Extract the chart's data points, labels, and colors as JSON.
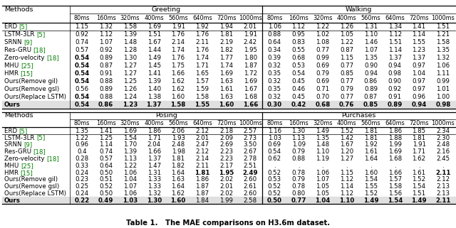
{
  "title": "Table 1.   The MAE comparisons on H3.6m dataset.",
  "col_headers": [
    "80ms",
    "160ms",
    "320ms",
    "400ms",
    "560ms",
    "640ms",
    "720ms",
    "1000ms"
  ],
  "methods": [
    "ERD [5]",
    "LSTM-3LR [5]",
    "SRNN [9]",
    "Res-GRU [18]",
    "Zero-velocity [18]",
    "MHU [25]",
    "HMR [15]",
    "Ours(Remove g_i^l)",
    "Ours(Remove g_s^l)",
    "Ours(Replace LSTM)",
    "Ours"
  ],
  "method_colors": [
    [
      "black",
      "green",
      "black"
    ],
    [
      "black",
      "green",
      "black"
    ],
    [
      "black",
      "green",
      "black"
    ],
    [
      "black",
      "green",
      "black"
    ],
    [
      "black",
      "green",
      "black"
    ],
    [
      "black",
      "green",
      "black"
    ],
    [
      "black",
      "green",
      "black"
    ],
    [
      "black",
      "black",
      "black"
    ],
    [
      "black",
      "black",
      "black"
    ],
    [
      "black",
      "black",
      "black"
    ],
    [
      "black",
      "black",
      "black"
    ]
  ],
  "greeting_data": [
    [
      "1.15",
      "1.32",
      "1.58",
      "1.69",
      "1.91",
      "1.92",
      "1.94",
      "2.01"
    ],
    [
      "0.92",
      "1.12",
      "1.39",
      "1.51",
      "1.76",
      "1.76",
      "1.81",
      "1.91"
    ],
    [
      "0.74",
      "1.07",
      "1.48",
      "1.67",
      "2.14",
      "2.11",
      "2.19",
      "2.42"
    ],
    [
      "0.57",
      "0.92",
      "1.28",
      "1.44",
      "1.74",
      "1.76",
      "1.82",
      "1.95"
    ],
    [
      "0.54",
      "0.89",
      "1.30",
      "1.49",
      "1.76",
      "1.74",
      "1.77",
      "1.80"
    ],
    [
      "0.54",
      "0.87",
      "1.27",
      "1.45",
      "1.75",
      "1.71",
      "1.74",
      "1.87"
    ],
    [
      "0.54",
      "0.91",
      "1.27",
      "1.41",
      "1.66",
      "1.65",
      "1.69",
      "1.72"
    ],
    [
      "0.54",
      "0.88",
      "1.25",
      "1.39",
      "1.62",
      "1.57",
      "1.63",
      "1.69"
    ],
    [
      "0.56",
      "0.89",
      "1.26",
      "1.40",
      "1.62",
      "1.59",
      "1.61",
      "1.67"
    ],
    [
      "0.54",
      "0.88",
      "1.24",
      "1.38",
      "1.60",
      "1.58",
      "1.63",
      "1.68"
    ],
    [
      "0.54",
      "0.86",
      "1.23",
      "1.37",
      "1.58",
      "1.55",
      "1.60",
      "1.66"
    ]
  ],
  "greeting_bold": [
    [
      false,
      false,
      false,
      false,
      false,
      false,
      false,
      false
    ],
    [
      false,
      false,
      false,
      false,
      false,
      false,
      false,
      false
    ],
    [
      false,
      false,
      false,
      false,
      false,
      false,
      false,
      false
    ],
    [
      false,
      false,
      false,
      false,
      false,
      false,
      false,
      false
    ],
    [
      true,
      false,
      false,
      false,
      false,
      false,
      false,
      false
    ],
    [
      true,
      false,
      false,
      false,
      false,
      false,
      false,
      false
    ],
    [
      true,
      false,
      false,
      false,
      false,
      false,
      false,
      false
    ],
    [
      true,
      false,
      false,
      false,
      false,
      false,
      false,
      false
    ],
    [
      false,
      false,
      false,
      false,
      false,
      false,
      false,
      false
    ],
    [
      true,
      false,
      false,
      false,
      false,
      false,
      false,
      false
    ],
    [
      true,
      true,
      true,
      true,
      true,
      true,
      true,
      true
    ]
  ],
  "walking_data": [
    [
      "1.06",
      "1.12",
      "1.22",
      "1.26",
      "1.31",
      "1.34",
      "1.41",
      "1.51"
    ],
    [
      "0.88",
      "0.95",
      "1.02",
      "1.05",
      "1.10",
      "1.12",
      "1.14",
      "1.21"
    ],
    [
      "0.64",
      "0.83",
      "1.08",
      "1.22",
      "1.46",
      "1.51",
      "1.55",
      "1.58"
    ],
    [
      "0.34",
      "0.55",
      "0.77",
      "0.87",
      "1.07",
      "1.14",
      "1.23",
      "1.35"
    ],
    [
      "0.39",
      "0.68",
      "0.99",
      "1.15",
      "1.35",
      "1.37",
      "1.37",
      "1.32"
    ],
    [
      "0.32",
      "0.53",
      "0.69",
      "0.77",
      "0.90",
      "0.94",
      "0.97",
      "1.06"
    ],
    [
      "0.35",
      "0.54",
      "0.79",
      "0.85",
      "0.94",
      "0.98",
      "1.04",
      "1.11"
    ],
    [
      "0.32",
      "0.45",
      "0.69",
      "0.77",
      "0.86",
      "0.90",
      "0.97",
      "0.99"
    ],
    [
      "0.35",
      "0.46",
      "0.71",
      "0.79",
      "0.89",
      "0.92",
      "0.97",
      "1.01"
    ],
    [
      "0.32",
      "0.45",
      "0.70",
      "0.77",
      "0.87",
      "0.91",
      "0.96",
      "1.00"
    ],
    [
      "0.30",
      "0.42",
      "0.68",
      "0.76",
      "0.85",
      "0.89",
      "0.94",
      "0.98"
    ]
  ],
  "walking_bold": [
    [
      false,
      false,
      false,
      false,
      false,
      false,
      false,
      false
    ],
    [
      false,
      false,
      false,
      false,
      false,
      false,
      false,
      false
    ],
    [
      false,
      false,
      false,
      false,
      false,
      false,
      false,
      false
    ],
    [
      false,
      false,
      false,
      false,
      false,
      false,
      false,
      false
    ],
    [
      false,
      false,
      false,
      false,
      false,
      false,
      false,
      false
    ],
    [
      false,
      false,
      false,
      false,
      false,
      false,
      false,
      false
    ],
    [
      false,
      false,
      false,
      false,
      false,
      false,
      false,
      false
    ],
    [
      false,
      false,
      false,
      false,
      false,
      false,
      false,
      false
    ],
    [
      false,
      false,
      false,
      false,
      false,
      false,
      false,
      false
    ],
    [
      false,
      false,
      false,
      false,
      false,
      false,
      false,
      false
    ],
    [
      true,
      true,
      true,
      true,
      true,
      true,
      true,
      true
    ]
  ],
  "posing_data": [
    [
      "1.35",
      "1.41",
      "1.69",
      "1.86",
      "2.06",
      "2.12",
      "2.18",
      "2.57"
    ],
    [
      "1.22",
      "1.25",
      "1.54",
      "1.71",
      "1.93",
      "2.01",
      "2.09",
      "2.73"
    ],
    [
      "0.96",
      "1.14",
      "1.70",
      "2.04",
      "2.48",
      "2.47",
      "2.69",
      "3.50"
    ],
    [
      "0.4",
      "0.74",
      "1.39",
      "1.66",
      "1.98",
      "2.12",
      "2.23",
      "2.67"
    ],
    [
      "0.28",
      "0.57",
      "1.13",
      "1.37",
      "1.81",
      "2.14",
      "2.23",
      "2.78"
    ],
    [
      "0.33",
      "0.64",
      "1.22",
      "1.47",
      "1.82",
      "2.11",
      "2.17",
      "2.51"
    ],
    [
      "0.24",
      "0.50",
      "1.06",
      "1.31",
      "1.64",
      "1.81",
      "1.95",
      "2.49"
    ],
    [
      "0.23",
      "0.51",
      "1.04",
      "1.33",
      "1.63",
      "1.86",
      "2.02",
      "2.60"
    ],
    [
      "0.25",
      "0.52",
      "1.07",
      "1.33",
      "1.64",
      "1.87",
      "2.01",
      "2.61"
    ],
    [
      "0.24",
      "0.50",
      "1.06",
      "1.32",
      "1.62",
      "1.87",
      "2.02",
      "2.60"
    ],
    [
      "0.22",
      "0.49",
      "1.03",
      "1.30",
      "1.60",
      "1.84",
      "1.99",
      "2.58"
    ]
  ],
  "posing_bold": [
    [
      false,
      false,
      false,
      false,
      false,
      false,
      false,
      false
    ],
    [
      false,
      false,
      false,
      false,
      false,
      false,
      false,
      false
    ],
    [
      false,
      false,
      false,
      false,
      false,
      false,
      false,
      false
    ],
    [
      false,
      false,
      false,
      false,
      false,
      false,
      false,
      false
    ],
    [
      false,
      false,
      false,
      false,
      false,
      false,
      false,
      false
    ],
    [
      false,
      false,
      false,
      false,
      false,
      false,
      false,
      false
    ],
    [
      false,
      false,
      false,
      false,
      false,
      true,
      true,
      true
    ],
    [
      false,
      false,
      false,
      false,
      false,
      false,
      false,
      false
    ],
    [
      false,
      false,
      false,
      false,
      false,
      false,
      false,
      false
    ],
    [
      false,
      false,
      false,
      false,
      false,
      false,
      false,
      false
    ],
    [
      true,
      true,
      true,
      true,
      true,
      false,
      false,
      false
    ]
  ],
  "purchases_data": [
    [
      "1.16",
      "1.30",
      "1.49",
      "1.52",
      "1.81",
      "1.86",
      "1.85",
      "2.34"
    ],
    [
      "1.03",
      "1.13",
      "1.35",
      "1.42",
      "1.81",
      "1.88",
      "1.81",
      "2.30"
    ],
    [
      "0.69",
      "1.09",
      "1.48",
      "1.67",
      "1.92",
      "1.99",
      "1.91",
      "2.48"
    ],
    [
      "0.54",
      "0.79",
      "1.10",
      "1.20",
      "1.61",
      "1.69",
      "1.71",
      "2.16"
    ],
    [
      "0.62",
      "0.88",
      "1.19",
      "1.27",
      "1.64",
      "1.68",
      "1.62",
      "2.45"
    ],
    [
      ".",
      ".",
      ".",
      ".",
      ".",
      ".",
      ".",
      "."
    ],
    [
      "0.52",
      "0.78",
      "1.06",
      "1.15",
      "1.60",
      "1.66",
      "1.61",
      "2.11"
    ],
    [
      "0.53",
      "0.79",
      "1.07",
      "1.12",
      "1.54",
      "1.57",
      "1.52",
      "2.12"
    ],
    [
      "0.52",
      "0.78",
      "1.05",
      "1.14",
      "1.55",
      "1.58",
      "1.54",
      "2.13"
    ],
    [
      "0.52",
      "0.80",
      "1.05",
      "1.12",
      "1.52",
      "1.56",
      "1.51",
      "2.13"
    ],
    [
      "0.50",
      "0.77",
      "1.04",
      "1.10",
      "1.49",
      "1.54",
      "1.49",
      "2.11"
    ]
  ],
  "purchases_bold": [
    [
      false,
      false,
      false,
      false,
      false,
      false,
      false,
      false
    ],
    [
      false,
      false,
      false,
      false,
      false,
      false,
      false,
      false
    ],
    [
      false,
      false,
      false,
      false,
      false,
      false,
      false,
      false
    ],
    [
      false,
      false,
      false,
      false,
      false,
      false,
      false,
      false
    ],
    [
      false,
      false,
      false,
      false,
      false,
      false,
      false,
      false
    ],
    [
      false,
      false,
      false,
      false,
      false,
      false,
      false,
      false
    ],
    [
      false,
      false,
      false,
      false,
      false,
      false,
      false,
      true
    ],
    [
      false,
      false,
      false,
      false,
      false,
      false,
      false,
      false
    ],
    [
      false,
      false,
      false,
      false,
      false,
      false,
      false,
      false
    ],
    [
      false,
      false,
      false,
      false,
      false,
      false,
      false,
      false
    ],
    [
      true,
      true,
      true,
      true,
      true,
      true,
      true,
      true
    ]
  ],
  "font_size": 6.2,
  "header_font_size": 6.8
}
